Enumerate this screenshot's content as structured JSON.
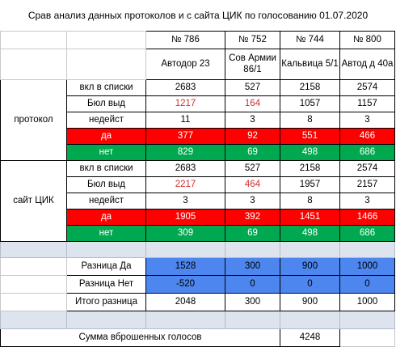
{
  "title": "Срав анализ данных протоколов и с сайта ЦИК по голосованию 01.07.2020",
  "stations": [
    {
      "number": "№ 786",
      "name": "Автодор 23"
    },
    {
      "number": "№ 752",
      "name": "Сов Армии 86/1"
    },
    {
      "number": "№ 744",
      "name": "Кальвица 5/1"
    },
    {
      "number": "№ 800",
      "name": "Автод д 40а"
    }
  ],
  "protocol": {
    "group_label": "протокол",
    "rows": [
      {
        "label": "вкл в списки",
        "values": [
          "2683",
          "527",
          "2158",
          "2574"
        ]
      },
      {
        "label": "Бюл выд",
        "values": [
          "1217",
          "164",
          "1057",
          "1157"
        ]
      },
      {
        "label": "недейст",
        "values": [
          "11",
          "3",
          "8",
          "3"
        ]
      },
      {
        "label": "да",
        "values": [
          "377",
          "92",
          "551",
          "466"
        ]
      },
      {
        "label": "нет",
        "values": [
          "829",
          "69",
          "498",
          "686"
        ]
      }
    ]
  },
  "cik": {
    "group_label": "сайт ЦИК",
    "rows": [
      {
        "label": "вкл в списки",
        "values": [
          "2683",
          "527",
          "2158",
          "2574"
        ]
      },
      {
        "label": "Бюл выд",
        "values": [
          "2217",
          "464",
          "1957",
          "2157"
        ]
      },
      {
        "label": "недейст",
        "values": [
          "3",
          "3",
          "8",
          "3"
        ]
      },
      {
        "label": "да",
        "values": [
          "1905",
          "392",
          "1451",
          "1466"
        ]
      },
      {
        "label": "нет",
        "values": [
          "309",
          "69",
          "498",
          "686"
        ]
      }
    ]
  },
  "diff": {
    "rows": [
      {
        "label": "Разница Да",
        "values": [
          "1528",
          "300",
          "900",
          "1000"
        ]
      },
      {
        "label": "Разница Нет",
        "values": [
          "-520",
          "0",
          "0",
          "0"
        ]
      },
      {
        "label": "Итого разница",
        "values": [
          "2048",
          "300",
          "900",
          "1000"
        ]
      }
    ]
  },
  "summary": {
    "label": "Сумма вброшенных голосов",
    "value": "4248"
  },
  "colors": {
    "yes_row": "#ff0000",
    "no_row": "#00a94f",
    "diff_highlight": "#4d86ef",
    "issued_ballots_text": "#d0312d",
    "spacer_row": "#dde4ee"
  }
}
